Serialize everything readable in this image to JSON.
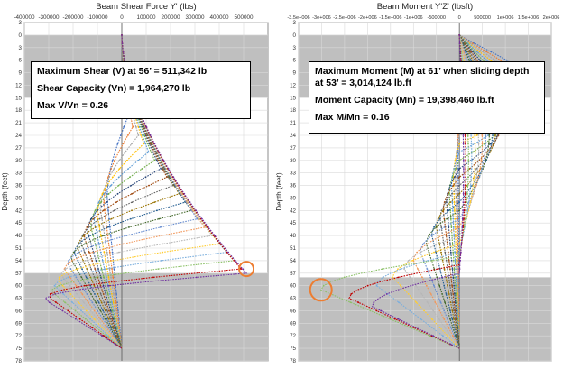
{
  "chart_data": [
    {
      "type": "line",
      "title": "Beam Shear Force Y' (lbs)",
      "ylabel": "Depth (feet)",
      "xlim": [
        -400000,
        600000
      ],
      "ylim": [
        -3,
        78
      ],
      "y_inverted": true,
      "x_tick_labels": [
        "-400000",
        "-300000",
        "-200000",
        "-100000",
        "0",
        "100000",
        "200000",
        "300000",
        "400000",
        "500000"
      ],
      "x_ticks": [
        -400000,
        -300000,
        -200000,
        -100000,
        0,
        100000,
        200000,
        300000,
        400000,
        500000
      ],
      "y_tick_labels": [
        "-3",
        "0",
        "3",
        "6",
        "9",
        "12",
        "15",
        "18",
        "21",
        "24",
        "27",
        "30",
        "33",
        "36",
        "39",
        "42",
        "45",
        "48",
        "51",
        "54",
        "57",
        "60",
        "63",
        "66",
        "69",
        "72",
        "75",
        "78"
      ],
      "grid": true,
      "shaded_depth_bands": [
        [
          0,
          15
        ],
        [
          57,
          79
        ]
      ],
      "annotation": {
        "lines": [
          "Maximum Shear (V) at 56’ = 511,342 lb",
          "Shear Capacity (Vn) = 1,964,270 lb",
          "Max V/Vn = 0.26"
        ]
      },
      "highlight": {
        "x": 511342,
        "y": 56,
        "color": "#ed7d31"
      },
      "series_generator": {
        "sliding_depths": [
          20,
          22,
          24,
          26,
          28,
          30,
          32,
          34,
          36,
          38,
          40,
          42,
          44,
          46,
          48,
          50,
          52,
          54,
          56,
          57
        ],
        "peak_shear": [
          22000,
          45000,
          68000,
          90000,
          110000,
          135000,
          160000,
          185000,
          210000,
          235000,
          260000,
          285000,
          310000,
          340000,
          370000,
          400000,
          430000,
          460000,
          490000,
          511342
        ],
        "toe_depth": 75,
        "colors": [
          "#4472c4",
          "#ed7d31",
          "#a5a5a5",
          "#ffc000",
          "#5b9bd5",
          "#70ad47",
          "#264478",
          "#9e480e",
          "#636363",
          "#997300",
          "#255e91",
          "#43682b",
          "#698ed0",
          "#f1975a",
          "#b7b7b7",
          "#ffcd33",
          "#7cafdd",
          "#8cc168",
          "#c00000",
          "#7030a0"
        ]
      }
    },
    {
      "type": "line",
      "title": "Beam Moment Y'Z' (lbsft)",
      "ylabel": "Depth (feet)",
      "xlim": [
        -3500000,
        2000000
      ],
      "ylim": [
        -3,
        78
      ],
      "y_inverted": true,
      "x_tick_labels": [
        "-3.5e+006",
        "-3e+006",
        "-2.5e+006",
        "-2e+006",
        "-1.5e+006",
        "-1e+006",
        "-500000",
        "0",
        "500000",
        "1e+006",
        "1.5e+006",
        "2e+006"
      ],
      "x_ticks": [
        -3500000,
        -3000000,
        -2500000,
        -2000000,
        -1500000,
        -1000000,
        -500000,
        0,
        500000,
        1000000,
        1500000,
        2000000
      ],
      "y_tick_labels": [
        "-3",
        "0",
        "3",
        "6",
        "9",
        "12",
        "15",
        "18",
        "21",
        "24",
        "27",
        "30",
        "33",
        "36",
        "39",
        "42",
        "45",
        "48",
        "51",
        "54",
        "57",
        "60",
        "63",
        "66",
        "69",
        "72",
        "75",
        "78"
      ],
      "grid": true,
      "shaded_depth_bands": [
        [
          0,
          15
        ],
        [
          58,
          79
        ]
      ],
      "annotation": {
        "lines": [
          "Maximum Moment (M) at 61’ when sliding depth at 53’ = 3,014,124 lb.ft",
          "Moment Capacity (Mn) = 19,398,460 lb.ft",
          "Max M/Mn = 0.16"
        ]
      },
      "highlight": {
        "x": -3014124,
        "y": 61,
        "color": "#ed7d31"
      },
      "series_generator": {
        "sliding_depths": [
          20,
          22,
          24,
          26,
          28,
          30,
          32,
          34,
          36,
          38,
          40,
          42,
          44,
          46,
          48,
          50,
          52,
          53,
          55,
          57
        ],
        "peak_moment": [
          1950000,
          1850000,
          1750000,
          1650000,
          1550000,
          1450000,
          1350000,
          1250000,
          1150000,
          1050000,
          950000,
          850000,
          750000,
          650000,
          550000,
          450000,
          350000,
          260000,
          180000,
          120000
        ],
        "negative_peak": [
          -30000,
          -60000,
          -90000,
          -130000,
          -170000,
          -220000,
          -280000,
          -350000,
          -420000,
          -500000,
          -600000,
          -720000,
          -850000,
          -1000000,
          -1200000,
          -1450000,
          -1800000,
          -3014124,
          -2400000,
          -1900000
        ],
        "toe_depth": 75,
        "colors": [
          "#4472c4",
          "#ed7d31",
          "#a5a5a5",
          "#ffc000",
          "#5b9bd5",
          "#70ad47",
          "#264478",
          "#9e480e",
          "#636363",
          "#997300",
          "#255e91",
          "#43682b",
          "#698ed0",
          "#f1975a",
          "#b7b7b7",
          "#ffcd33",
          "#7cafdd",
          "#8cc168",
          "#c00000",
          "#7030a0"
        ]
      }
    }
  ]
}
